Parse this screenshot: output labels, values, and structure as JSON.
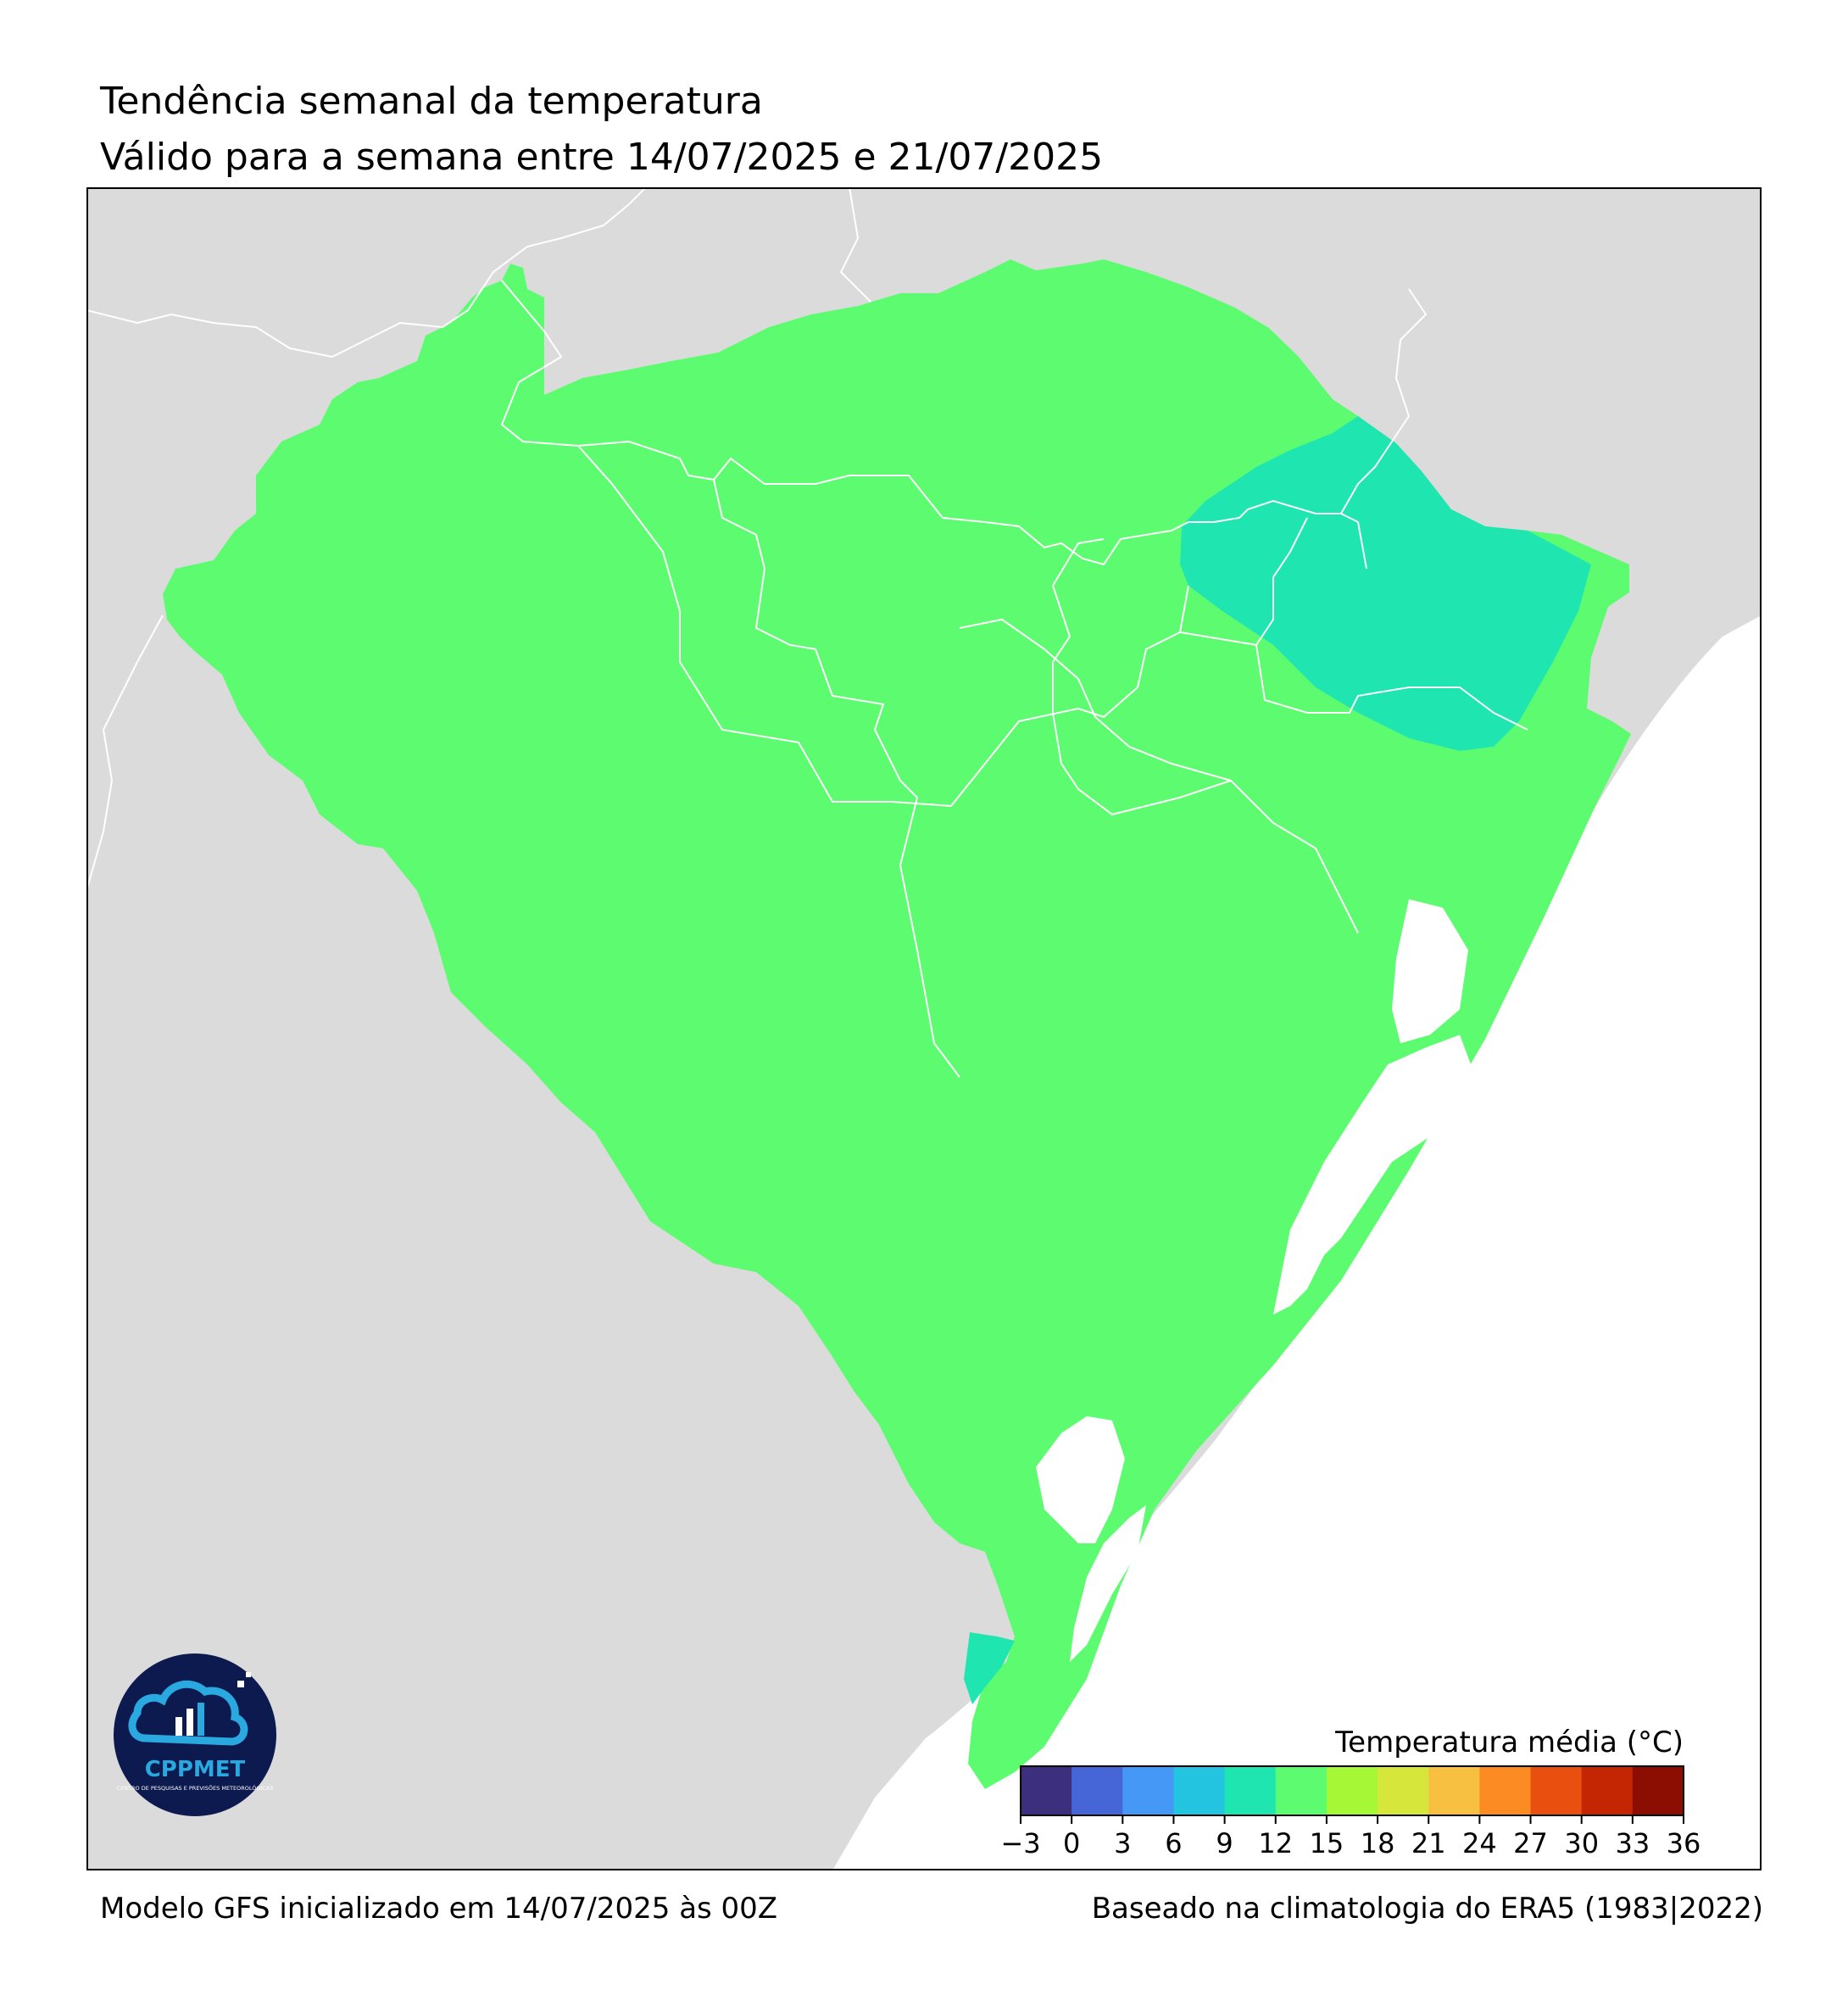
{
  "header": {
    "title": "Tendência semanal da temperatura",
    "subtitle": "Válido para a semana entre 14/07/2025 e 21/07/2025"
  },
  "footer": {
    "model_info": "Modelo GFS inicializado em 14/07/2025 às 00Z",
    "climatology_info": "Baseado na climatologia do ERA5 (1983|2022)"
  },
  "logo": {
    "name": "CPPMET",
    "tagline": "CENTRO DE PESQUISAS E PREVISÕES METEOROLÓGICAS"
  },
  "legend": {
    "title": "Temperatura média (°C)",
    "ticks": [
      "−3",
      "0",
      "3",
      "6",
      "9",
      "12",
      "15",
      "18",
      "21",
      "24",
      "27",
      "30",
      "33",
      "36"
    ],
    "colors": [
      "#3b2f7e",
      "#4666d8",
      "#4698f7",
      "#22c4e0",
      "#1fe6b0",
      "#5dfc70",
      "#a6f735",
      "#d6e63a",
      "#f7c040",
      "#fb8b22",
      "#e9500f",
      "#c42503",
      "#8c0d02"
    ]
  },
  "map": {
    "colors": {
      "land_outside": "#dbdbdb",
      "ocean": "#ffffff",
      "class_12_15": "#5dfc70",
      "class_9_12": "#1fe6b0",
      "boundaries": "#ffffff",
      "frame": "#000000"
    }
  }
}
